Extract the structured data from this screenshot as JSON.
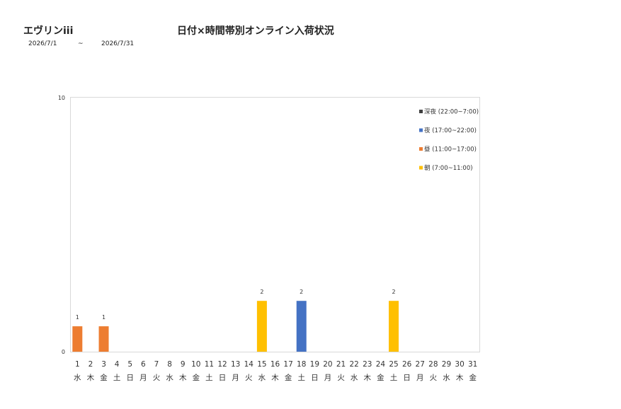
{
  "header": {
    "store_name": "エヴリンiii",
    "title": "日付×時間帯別オンライン入荷状況",
    "date_from": "2026/7/1",
    "date_separator": "~",
    "date_to": "2026/7/31"
  },
  "chart_data": {
    "type": "bar",
    "stacked": true,
    "categories": [
      "1",
      "2",
      "3",
      "4",
      "5",
      "6",
      "7",
      "8",
      "9",
      "10",
      "11",
      "12",
      "13",
      "14",
      "15",
      "16",
      "17",
      "18",
      "19",
      "20",
      "21",
      "22",
      "23",
      "24",
      "25",
      "26",
      "27",
      "28",
      "29",
      "30",
      "31"
    ],
    "weekdays": [
      "水",
      "木",
      "金",
      "土",
      "日",
      "月",
      "火",
      "水",
      "木",
      "金",
      "土",
      "日",
      "月",
      "火",
      "水",
      "木",
      "金",
      "土",
      "日",
      "月",
      "火",
      "水",
      "木",
      "金",
      "土",
      "日",
      "月",
      "火",
      "水",
      "木",
      "金"
    ],
    "ylim": [
      0,
      10
    ],
    "yticks": [
      "0",
      "10"
    ],
    "grid": false,
    "legend_position": "top-right",
    "series": [
      {
        "name": "深夜 (22:00~7:00)",
        "color": "#404040",
        "values": [
          0,
          0,
          0,
          0,
          0,
          0,
          0,
          0,
          0,
          0,
          0,
          0,
          0,
          0,
          0,
          0,
          0,
          0,
          0,
          0,
          0,
          0,
          0,
          0,
          0,
          0,
          0,
          0,
          0,
          0,
          0
        ]
      },
      {
        "name": "夜 (17:00~22:00)",
        "color": "#4472c4",
        "values": [
          0,
          0,
          0,
          0,
          0,
          0,
          0,
          0,
          0,
          0,
          0,
          0,
          0,
          0,
          0,
          0,
          0,
          2,
          0,
          0,
          0,
          0,
          0,
          0,
          0,
          0,
          0,
          0,
          0,
          0,
          0
        ]
      },
      {
        "name": "昼 (11:00~17:00)",
        "color": "#ed7d31",
        "values": [
          1,
          0,
          1,
          0,
          0,
          0,
          0,
          0,
          0,
          0,
          0,
          0,
          0,
          0,
          0,
          0,
          0,
          0,
          0,
          0,
          0,
          0,
          0,
          0,
          0,
          0,
          0,
          0,
          0,
          0,
          0
        ]
      },
      {
        "name": "朝 (7:00~11:00)",
        "color": "#ffc000",
        "values": [
          0,
          0,
          0,
          0,
          0,
          0,
          0,
          0,
          0,
          0,
          0,
          0,
          0,
          0,
          2,
          0,
          0,
          0,
          0,
          0,
          0,
          0,
          0,
          0,
          2,
          0,
          0,
          0,
          0,
          0,
          0
        ]
      }
    ],
    "data_labels": [
      "1",
      "",
      "1",
      "",
      "",
      "",
      "",
      "",
      "",
      "",
      "",
      "",
      "",
      "",
      "2",
      "",
      "",
      "2",
      "",
      "",
      "",
      "",
      "",
      "",
      "2",
      "",
      "",
      "",
      "",
      "",
      ""
    ]
  }
}
